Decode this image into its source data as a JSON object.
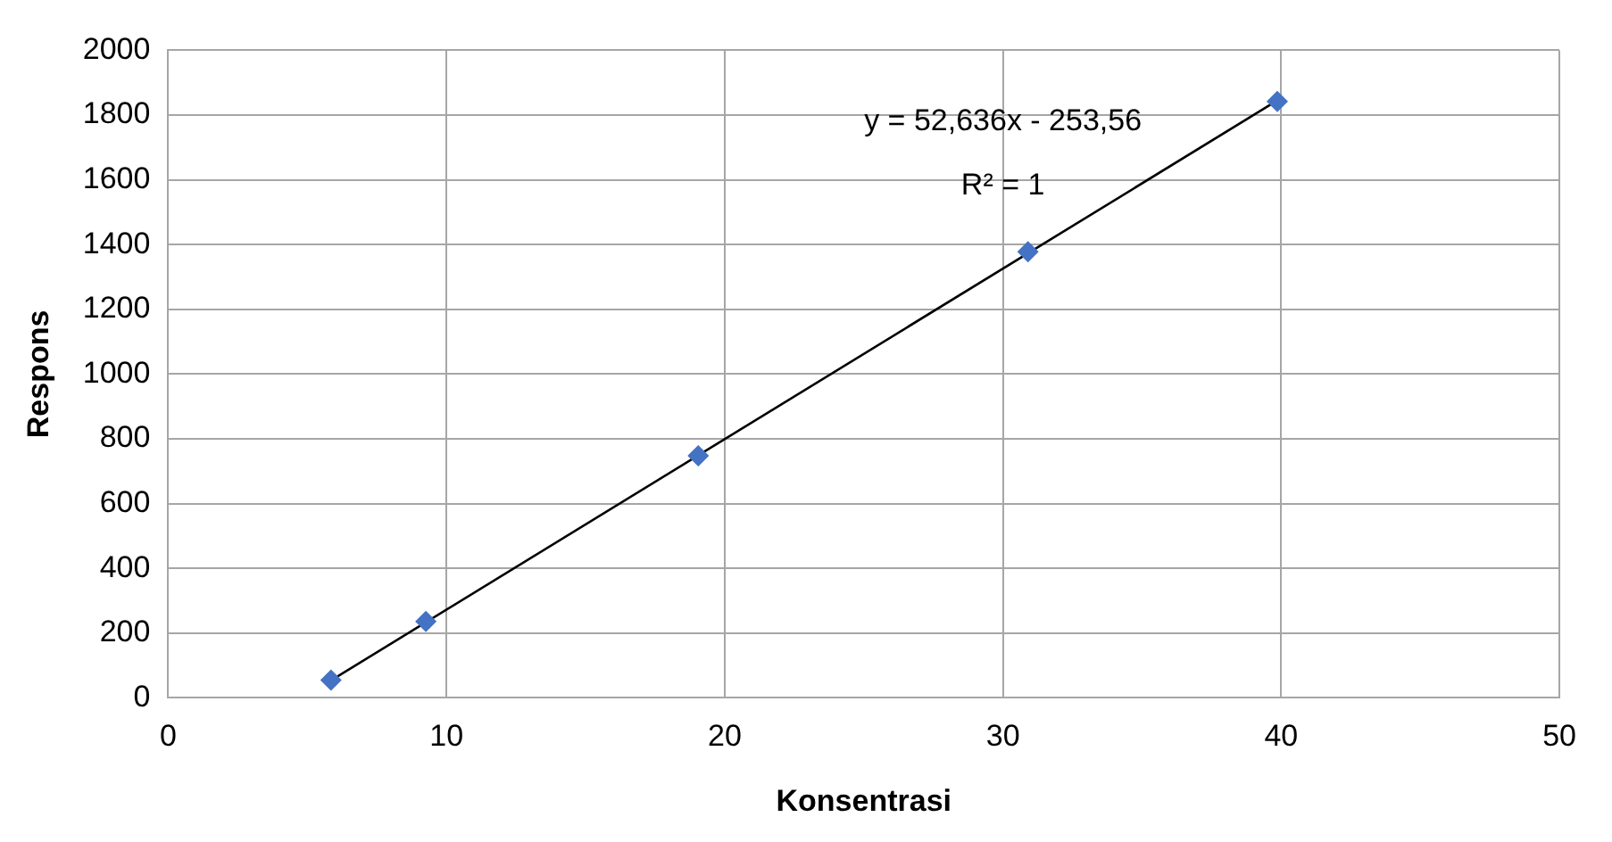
{
  "chart_data": {
    "type": "scatter",
    "xlabel": "Konsentrasi",
    "ylabel": "Respons",
    "x": [
      5.85,
      9.26,
      19.05,
      30.9,
      39.86
    ],
    "series": [
      {
        "color": "#4472c4",
        "values": [
          55,
          236,
          748,
          1378,
          1842
        ],
        "marker": "diamond"
      },
      {
        "type": "line",
        "color": "#000000",
        "x": [
          5.85,
          39.86
        ],
        "values": [
          54,
          1845
        ],
        "marker": "none",
        "line_style": "solid"
      }
    ],
    "annotations": [
      "y = 52,636x - 253,56",
      "R² = 1"
    ],
    "xlim": [
      0,
      50
    ],
    "xticks": [
      0,
      10,
      20,
      30,
      40,
      50
    ],
    "ylim": [
      0,
      2000
    ],
    "yticks": [
      0,
      200,
      400,
      600,
      800,
      1000,
      1200,
      1400,
      1600,
      1800,
      2000
    ],
    "grid": true,
    "legend": false
  }
}
